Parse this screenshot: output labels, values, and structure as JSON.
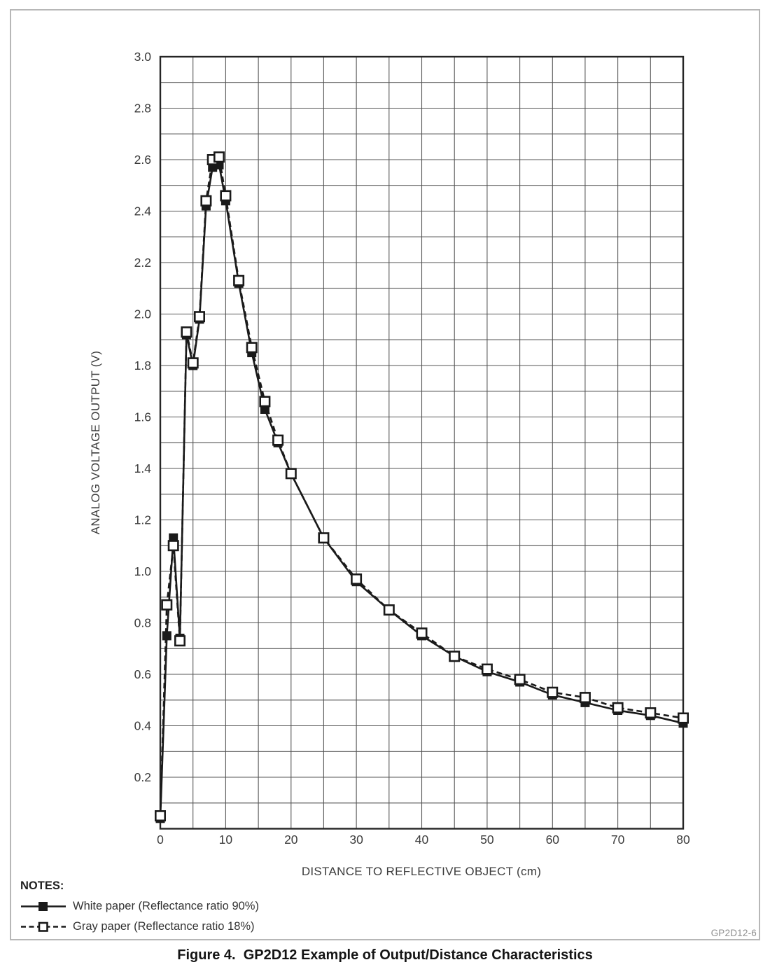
{
  "figure": {
    "caption": "Figure 4.  GP2D12 Example of Output/Distance Characteristics",
    "doc_code": "GP2D12-6",
    "notes_label": "NOTES:"
  },
  "legend": [
    {
      "label": "White paper (Reflectance ratio 90%)",
      "marker": "filled-square",
      "line": "solid"
    },
    {
      "label": "Gray paper (Reflectance ratio 18%)",
      "marker": "open-square",
      "line": "dashed"
    }
  ],
  "chart_data": {
    "type": "line",
    "title": "",
    "xlabel": "DISTANCE TO REFLECTIVE OBJECT (cm)",
    "ylabel": "ANALOG VOLTAGE OUTPUT (V)",
    "xlim": [
      0,
      80
    ],
    "ylim": [
      0,
      3.0
    ],
    "x_grid_step": 5,
    "y_grid_step": 0.1,
    "grid": true,
    "legend_position": "below-left",
    "x_tick_labels": [
      "0",
      "10",
      "20",
      "30",
      "40",
      "50",
      "60",
      "70",
      "80"
    ],
    "y_tick_labels": [
      "0.2",
      "0.4",
      "0.6",
      "0.8",
      "1.0",
      "1.2",
      "1.4",
      "1.6",
      "1.8",
      "2.0",
      "2.2",
      "2.4",
      "2.6",
      "2.8",
      "3.0"
    ],
    "x": [
      0,
      1,
      2,
      3,
      4,
      5,
      6,
      7,
      8,
      9,
      10,
      12,
      14,
      16,
      18,
      20,
      25,
      30,
      35,
      40,
      45,
      50,
      55,
      60,
      65,
      70,
      75,
      80
    ],
    "series": [
      {
        "id": "white-paper",
        "name": "White paper (Reflectance ratio 90%)",
        "marker": "filled-square",
        "line": "solid",
        "values": [
          0.04,
          0.75,
          1.13,
          0.74,
          1.92,
          1.8,
          1.98,
          2.42,
          2.57,
          2.58,
          2.44,
          2.12,
          1.85,
          1.63,
          1.5,
          1.38,
          1.13,
          0.96,
          0.85,
          0.75,
          0.67,
          0.61,
          0.57,
          0.52,
          0.49,
          0.46,
          0.44,
          0.41
        ]
      },
      {
        "id": "gray-paper",
        "name": "Gray paper (Reflectance ratio 18%)",
        "marker": "open-square",
        "line": "dashed",
        "values": [
          0.05,
          0.87,
          1.1,
          0.73,
          1.93,
          1.81,
          1.99,
          2.44,
          2.6,
          2.61,
          2.46,
          2.13,
          1.87,
          1.66,
          1.51,
          1.38,
          1.13,
          0.97,
          0.85,
          0.76,
          0.67,
          0.62,
          0.58,
          0.53,
          0.51,
          0.47,
          0.45,
          0.43
        ]
      }
    ]
  },
  "colors": {
    "background": "#ffffff",
    "frame_border": "#b7b7b7",
    "grid": "#555555",
    "axis": "#252525",
    "line": "#1a1a1a",
    "text": "#3c3c3c",
    "muted_text": "#8f8f8f"
  }
}
